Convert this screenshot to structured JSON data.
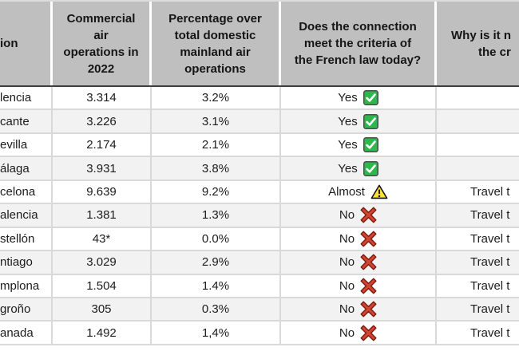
{
  "table": {
    "headers": {
      "connection": "ion",
      "operations": "Commercial\nair\noperations in\n2022",
      "percentage": "Percentage over\ntotal domestic\nmainland air\noperations",
      "criteria": "Does the connection\nmeet the criteria of\nthe French law today?",
      "why_line1": "Why is it n",
      "why_line2": "the cr"
    },
    "rows": [
      {
        "connection": "lencia",
        "operations": "3.314",
        "percentage": "3.2%",
        "criteria": "Yes",
        "icon": "check",
        "why": ""
      },
      {
        "connection": "cante",
        "operations": "3.226",
        "percentage": "3.1%",
        "criteria": "Yes",
        "icon": "check",
        "why": ""
      },
      {
        "connection": "evilla",
        "operations": "2.174",
        "percentage": "2.1%",
        "criteria": "Yes",
        "icon": "check",
        "why": ""
      },
      {
        "connection": "álaga",
        "operations": "3.931",
        "percentage": "3.8%",
        "criteria": "Yes",
        "icon": "check",
        "why": ""
      },
      {
        "connection": "celona",
        "operations": "9.639",
        "percentage": "9.2%",
        "criteria": "Almost",
        "icon": "warning",
        "why": "Travel t"
      },
      {
        "connection": "alencia",
        "operations": "1.381",
        "percentage": "1.3%",
        "criteria": "No",
        "icon": "cross",
        "why": "Travel t"
      },
      {
        "connection": "stellón",
        "operations": "43*",
        "percentage": "0.0%",
        "criteria": "No",
        "icon": "cross",
        "why": "Travel t"
      },
      {
        "connection": "ntiago",
        "operations": "3.029",
        "percentage": "2.9%",
        "criteria": "No",
        "icon": "cross",
        "why": "Travel t"
      },
      {
        "connection": "mplona",
        "operations": "1.504",
        "percentage": "1.4%",
        "criteria": "No",
        "icon": "cross",
        "why": "Travel t"
      },
      {
        "connection": "groño",
        "operations": "305",
        "percentage": "0.3%",
        "criteria": "No",
        "icon": "cross",
        "why": "Travel t"
      },
      {
        "connection": "anada",
        "operations": "1.492",
        "percentage": "1,4%",
        "criteria": "No",
        "icon": "cross",
        "why": "Travel t"
      }
    ],
    "colors": {
      "header_bg": "#bfbfbf",
      "row_alt_bg": "#f2f2f2",
      "grid_line": "#d9d9d9",
      "header_underline": "#3f3f3f",
      "yes_green": "#2db84b",
      "warning_yellow": "#ffe133",
      "no_red": "#d0452f"
    }
  }
}
